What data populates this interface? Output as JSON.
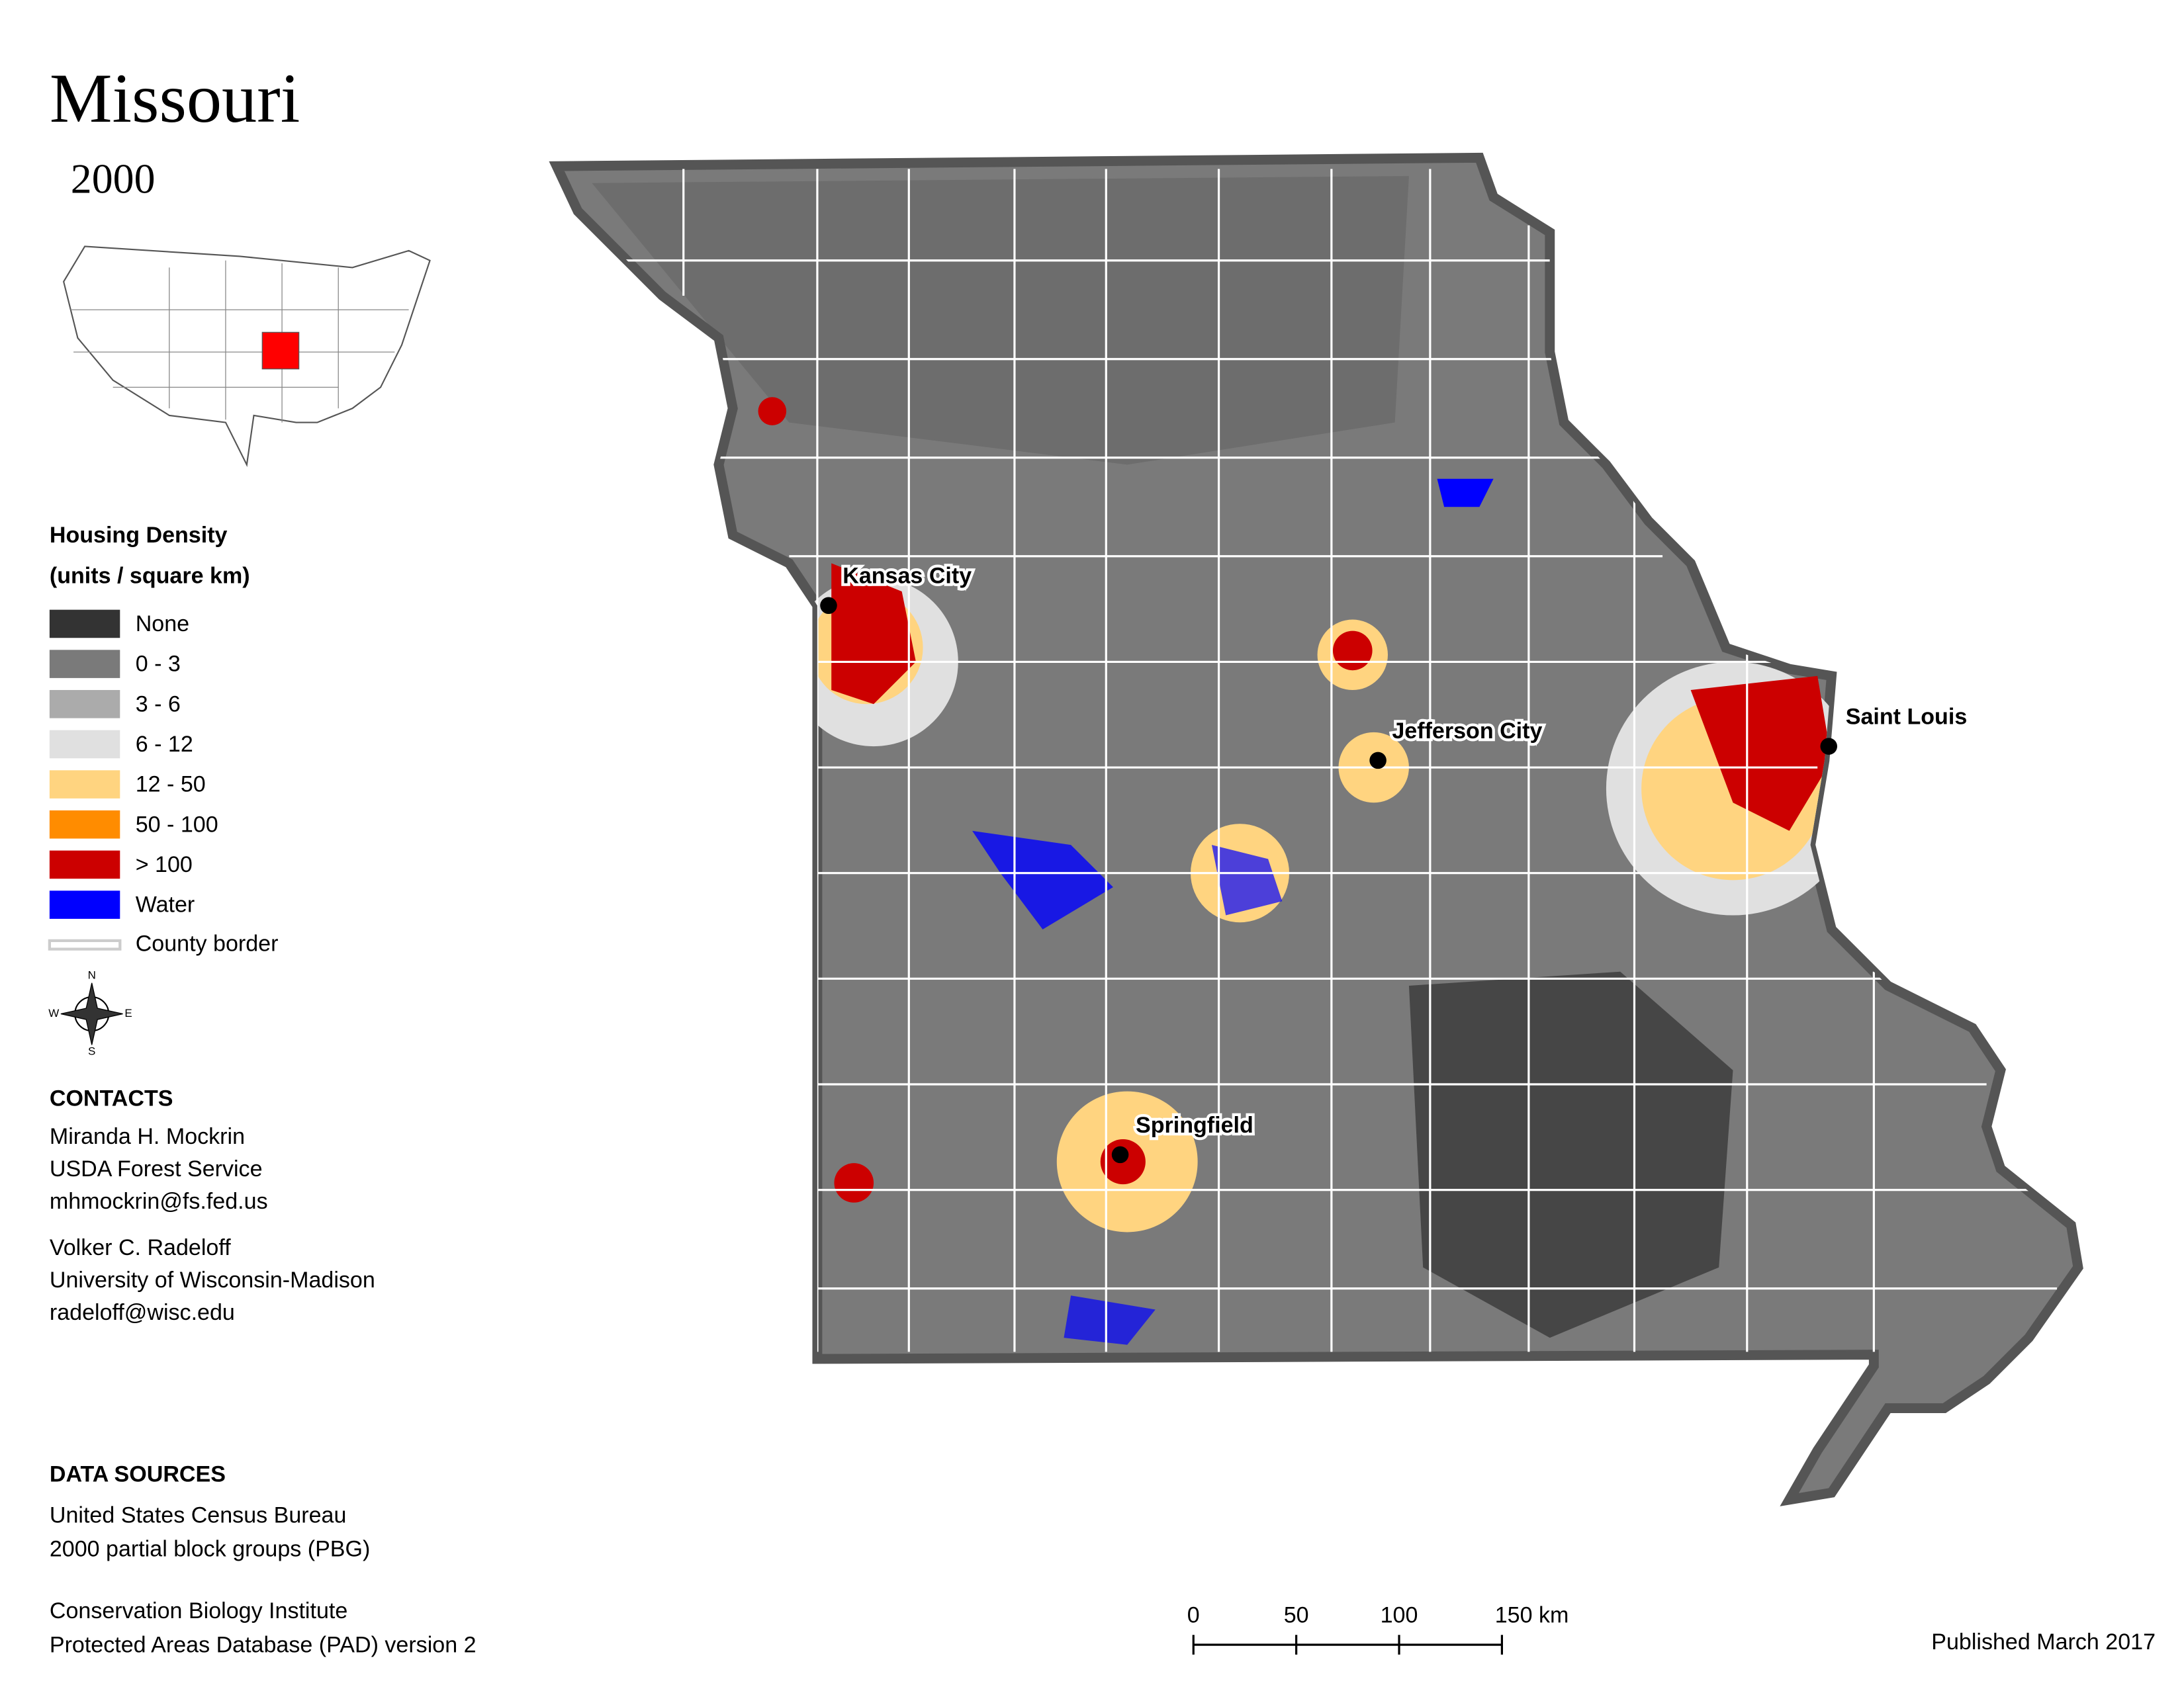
{
  "header": {
    "title": "Missouri",
    "year": "2000"
  },
  "legend": {
    "title": "Housing Density",
    "subtitle": "(units / square km)",
    "items": [
      {
        "label": "None",
        "color": "#333333"
      },
      {
        "label": "0 - 3",
        "color": "#7a7a7a"
      },
      {
        "label": "3 - 6",
        "color": "#ababab"
      },
      {
        "label": "6 - 12",
        "color": "#e0e0e0"
      },
      {
        "label": "12 - 50",
        "color": "#ffd480"
      },
      {
        "label": "50 - 100",
        "color": "#ff8c00"
      },
      {
        "label": "> 100",
        "color": "#cc0000"
      },
      {
        "label": "Water",
        "color": "#0000ff"
      }
    ],
    "border": {
      "label": "County border",
      "color": "#cccccc"
    }
  },
  "compass": {
    "n": "N",
    "e": "E",
    "s": "S",
    "w": "W"
  },
  "cities": [
    {
      "name": "Kansas City"
    },
    {
      "name": "Jefferson City"
    },
    {
      "name": "Saint Louis"
    },
    {
      "name": "Springfield"
    }
  ],
  "contacts": {
    "title": "CONTACTS",
    "people": [
      [
        "Miranda H. Mockrin",
        "USDA Forest Service",
        "mhmockrin@fs.fed.us"
      ],
      [
        "Volker C. Radeloff",
        "University of Wisconsin-Madison",
        "radeloff@wisc.edu"
      ]
    ]
  },
  "sources": {
    "title": "DATA SOURCES",
    "groups": [
      [
        "United States Census Bureau",
        "2000 partial block groups (PBG)"
      ],
      [
        "Conservation Biology Institute",
        "Protected Areas Database (PAD) version 2"
      ]
    ]
  },
  "scale": {
    "ticks": [
      0,
      50,
      100,
      {
        "value": 150,
        "label": "150 km"
      }
    ]
  },
  "footer": {
    "published": "Published March 2017"
  }
}
